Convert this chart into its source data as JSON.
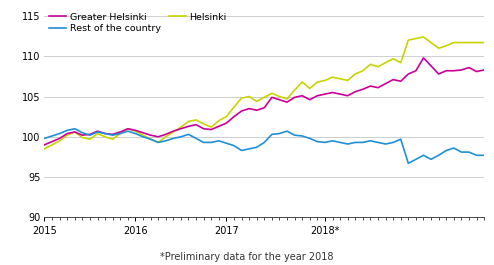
{
  "footnote": "*Preliminary data for the year 2018",
  "colors": {
    "Greater Helsinki": "#cc0099",
    "Helsinki": "#c8d400",
    "Rest of the country": "#1e90d8"
  },
  "linewidth": 1.2,
  "ylim": [
    90,
    116
  ],
  "yticks": [
    90,
    95,
    100,
    105,
    110,
    115
  ],
  "xtick_labels": [
    "2015",
    "2016",
    "2017",
    "2018*"
  ],
  "greater_helsinki": [
    99.0,
    99.4,
    99.8,
    100.4,
    100.6,
    100.2,
    100.3,
    100.7,
    100.4,
    100.3,
    100.6,
    101.0,
    100.8,
    100.5,
    100.2,
    100.0,
    100.3,
    100.7,
    101.0,
    101.3,
    101.5,
    101.0,
    100.9,
    101.3,
    101.7,
    102.5,
    103.2,
    103.5,
    103.3,
    103.6,
    104.9,
    104.6,
    104.3,
    104.9,
    105.1,
    104.6,
    105.1,
    105.3,
    105.5,
    105.3,
    105.1,
    105.6,
    105.9,
    106.3,
    106.1,
    106.6,
    107.1,
    106.9,
    107.8,
    108.2,
    109.8,
    108.8,
    107.8,
    108.2,
    108.2,
    108.3,
    108.6,
    108.1,
    108.3
  ],
  "helsinki": [
    98.5,
    99.0,
    99.5,
    100.2,
    100.6,
    99.9,
    99.7,
    100.4,
    100.0,
    99.7,
    100.4,
    101.0,
    100.7,
    100.2,
    99.7,
    99.3,
    100.0,
    100.6,
    101.2,
    101.9,
    102.1,
    101.6,
    101.2,
    102.0,
    102.5,
    103.7,
    104.8,
    105.0,
    104.4,
    104.9,
    105.4,
    105.0,
    104.7,
    105.8,
    106.8,
    106.0,
    106.8,
    107.0,
    107.4,
    107.2,
    107.0,
    107.8,
    108.2,
    109.0,
    108.7,
    109.2,
    109.7,
    109.2,
    112.0,
    112.2,
    112.4,
    111.7,
    111.0,
    111.3,
    111.7,
    111.7,
    111.7,
    111.7,
    111.7
  ],
  "rest_of_country": [
    99.8,
    100.1,
    100.4,
    100.8,
    101.0,
    100.5,
    100.2,
    100.6,
    100.4,
    100.2,
    100.4,
    100.7,
    100.4,
    100.0,
    99.7,
    99.3,
    99.5,
    99.8,
    100.0,
    100.3,
    99.8,
    99.3,
    99.3,
    99.5,
    99.2,
    98.9,
    98.3,
    98.5,
    98.7,
    99.3,
    100.3,
    100.4,
    100.7,
    100.2,
    100.1,
    99.8,
    99.4,
    99.3,
    99.5,
    99.3,
    99.1,
    99.3,
    99.3,
    99.5,
    99.3,
    99.1,
    99.3,
    99.7,
    96.7,
    97.2,
    97.7,
    97.2,
    97.7,
    98.3,
    98.6,
    98.1,
    98.1,
    97.7,
    97.7
  ]
}
